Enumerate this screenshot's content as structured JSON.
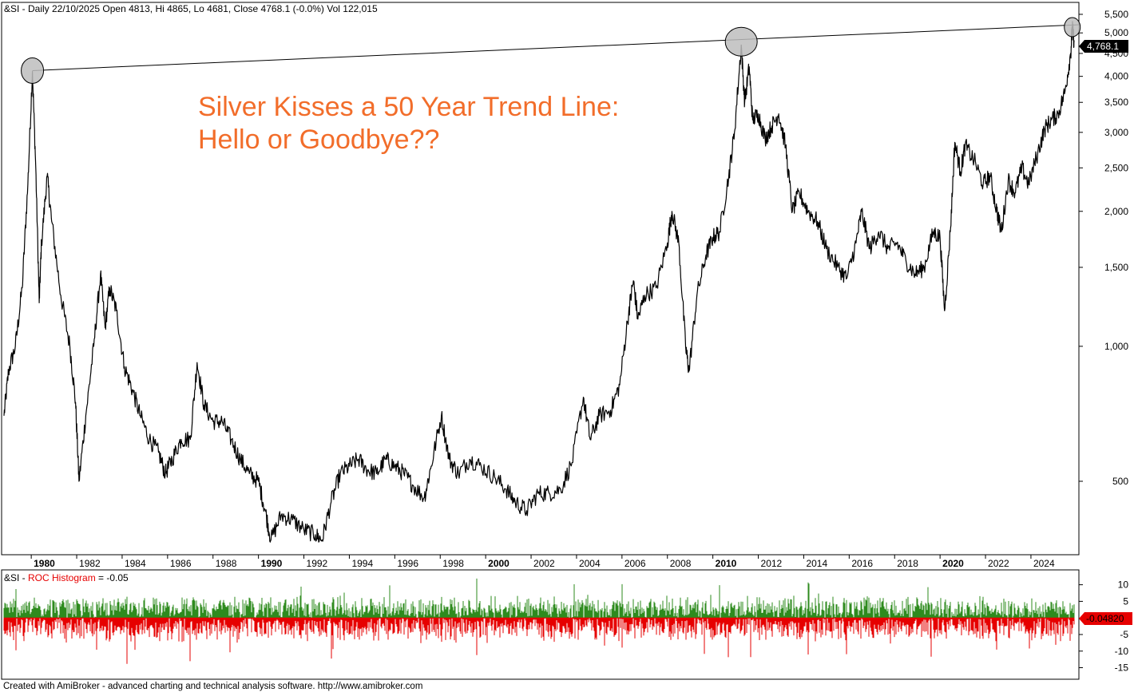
{
  "header": {
    "main": "&SI - Daily 22/10/2025 Open 4813, Hi 4865, Lo 4681, Close 4768.1 (-0.0%) Vol 122,015",
    "roc_prefix": "&SI - ",
    "roc_name": "ROC Histogram",
    "roc_value": " = -0.05"
  },
  "annotation": {
    "line1": "Silver Kisses a 50 Year Trend Line:",
    "line2": "Hello or Goodbye??"
  },
  "price_label": "4,768.1",
  "roc_label": "-0.04820",
  "footer": "Created with AmiBroker - advanced charting and technical analysis software. http://www.amibroker.com",
  "colors": {
    "price_line": "#000000",
    "annotation": "#f26d2a",
    "roc_positive": "#2e8b1e",
    "roc_negative": "#e60000",
    "circle_fill": "#bdbdbd"
  },
  "chart_data": [
    {
      "type": "line",
      "title": "&SI - Daily",
      "scale": "log",
      "ylim": [
        350,
        5800
      ],
      "yticks": [
        500,
        1000,
        1500,
        2000,
        2500,
        3000,
        3500,
        4000,
        4500,
        5000,
        5500
      ],
      "ytick_labels": [
        "500",
        "1,000",
        "1,500",
        "2,000",
        "2,500",
        "3,000",
        "3,500",
        "4,000",
        "4,500",
        "5,000",
        "5,500"
      ],
      "xticks": [
        {
          "label": "1980",
          "year": 1980,
          "bold": true
        },
        {
          "label": "1982",
          "year": 1982,
          "bold": false
        },
        {
          "label": "1984",
          "year": 1984,
          "bold": false
        },
        {
          "label": "1986",
          "year": 1986,
          "bold": false
        },
        {
          "label": "1988",
          "year": 1988,
          "bold": false
        },
        {
          "label": "1990",
          "year": 1990,
          "bold": true
        },
        {
          "label": "1992",
          "year": 1992,
          "bold": false
        },
        {
          "label": "1994",
          "year": 1994,
          "bold": false
        },
        {
          "label": "1996",
          "year": 1996,
          "bold": false
        },
        {
          "label": "1998",
          "year": 1998,
          "bold": false
        },
        {
          "label": "2000",
          "year": 2000,
          "bold": true
        },
        {
          "label": "2002",
          "year": 2002,
          "bold": false
        },
        {
          "label": "2004",
          "year": 2004,
          "bold": false
        },
        {
          "label": "2006",
          "year": 2006,
          "bold": false
        },
        {
          "label": "2008",
          "year": 2008,
          "bold": false
        },
        {
          "label": "2010",
          "year": 2010,
          "bold": true
        },
        {
          "label": "2012",
          "year": 2012,
          "bold": false
        },
        {
          "label": "2014",
          "year": 2014,
          "bold": false
        },
        {
          "label": "2016",
          "year": 2016,
          "bold": false
        },
        {
          "label": "2018",
          "year": 2018,
          "bold": false
        },
        {
          "label": "2020",
          "year": 2020,
          "bold": true
        },
        {
          "label": "2022",
          "year": 2022,
          "bold": false
        },
        {
          "label": "2024",
          "year": 2024,
          "bold": false
        }
      ],
      "xlim": [
        1978.8,
        2025.9
      ],
      "series": [
        {
          "points": [
            [
              1978.8,
              700
            ],
            [
              1979.0,
              880
            ],
            [
              1979.3,
              1000
            ],
            [
              1979.6,
              1350
            ],
            [
              1979.85,
              2300
            ],
            [
              1980.05,
              4100
            ],
            [
              1980.2,
              2500
            ],
            [
              1980.35,
              1250
            ],
            [
              1980.45,
              1700
            ],
            [
              1980.7,
              2400
            ],
            [
              1980.9,
              1900
            ],
            [
              1981.3,
              1300
            ],
            [
              1981.7,
              1000
            ],
            [
              1981.95,
              750
            ],
            [
              1982.1,
              500
            ],
            [
              1982.4,
              700
            ],
            [
              1982.75,
              1000
            ],
            [
              1983.05,
              1450
            ],
            [
              1983.25,
              1100
            ],
            [
              1983.45,
              1350
            ],
            [
              1983.75,
              1200
            ],
            [
              1984.1,
              900
            ],
            [
              1984.45,
              800
            ],
            [
              1984.8,
              700
            ],
            [
              1985.2,
              620
            ],
            [
              1985.6,
              580
            ],
            [
              1985.9,
              520
            ],
            [
              1986.2,
              560
            ],
            [
              1986.6,
              620
            ],
            [
              1987.0,
              620
            ],
            [
              1987.3,
              920
            ],
            [
              1987.6,
              740
            ],
            [
              1988.0,
              680
            ],
            [
              1988.4,
              680
            ],
            [
              1988.8,
              620
            ],
            [
              1989.2,
              560
            ],
            [
              1989.6,
              520
            ],
            [
              1990.0,
              500
            ],
            [
              1990.3,
              430
            ],
            [
              1990.55,
              370
            ],
            [
              1991.0,
              420
            ],
            [
              1991.5,
              410
            ],
            [
              1992.0,
              390
            ],
            [
              1992.5,
              380
            ],
            [
              1992.8,
              370
            ],
            [
              1993.2,
              450
            ],
            [
              1993.6,
              520
            ],
            [
              1994.0,
              540
            ],
            [
              1994.4,
              560
            ],
            [
              1994.8,
              530
            ],
            [
              1995.2,
              520
            ],
            [
              1995.6,
              560
            ],
            [
              1996.0,
              540
            ],
            [
              1996.4,
              520
            ],
            [
              1996.8,
              490
            ],
            [
              1997.3,
              460
            ],
            [
              1997.6,
              540
            ],
            [
              1998.05,
              700
            ],
            [
              1998.4,
              560
            ],
            [
              1998.8,
              520
            ],
            [
              1999.3,
              560
            ],
            [
              1999.8,
              540
            ],
            [
              2000.4,
              510
            ],
            [
              2000.9,
              480
            ],
            [
              2001.3,
              450
            ],
            [
              2001.8,
              430
            ],
            [
              2002.3,
              470
            ],
            [
              2002.8,
              470
            ],
            [
              2003.3,
              480
            ],
            [
              2003.8,
              550
            ],
            [
              2004.3,
              770
            ],
            [
              2004.6,
              620
            ],
            [
              2005.0,
              700
            ],
            [
              2005.5,
              720
            ],
            [
              2005.9,
              820
            ],
            [
              2006.3,
              1200
            ],
            [
              2006.5,
              1400
            ],
            [
              2006.7,
              1150
            ],
            [
              2007.0,
              1300
            ],
            [
              2007.5,
              1350
            ],
            [
              2008.0,
              1700
            ],
            [
              2008.2,
              2000
            ],
            [
              2008.5,
              1700
            ],
            [
              2008.8,
              1000
            ],
            [
              2008.95,
              880
            ],
            [
              2009.3,
              1300
            ],
            [
              2009.7,
              1600
            ],
            [
              2010.0,
              1750
            ],
            [
              2010.3,
              1800
            ],
            [
              2010.7,
              2400
            ],
            [
              2010.95,
              3000
            ],
            [
              2011.25,
              4700
            ],
            [
              2011.4,
              3500
            ],
            [
              2011.6,
              4200
            ],
            [
              2011.75,
              3200
            ],
            [
              2012.0,
              3300
            ],
            [
              2012.3,
              2900
            ],
            [
              2012.6,
              3100
            ],
            [
              2012.9,
              3300
            ],
            [
              2013.2,
              2800
            ],
            [
              2013.5,
              2000
            ],
            [
              2013.8,
              2200
            ],
            [
              2014.2,
              2000
            ],
            [
              2014.6,
              1900
            ],
            [
              2015.0,
              1650
            ],
            [
              2015.5,
              1500
            ],
            [
              2015.9,
              1420
            ],
            [
              2016.3,
              1700
            ],
            [
              2016.55,
              2000
            ],
            [
              2016.9,
              1650
            ],
            [
              2017.3,
              1800
            ],
            [
              2017.7,
              1650
            ],
            [
              2018.1,
              1700
            ],
            [
              2018.5,
              1550
            ],
            [
              2018.9,
              1450
            ],
            [
              2019.3,
              1500
            ],
            [
              2019.7,
              1800
            ],
            [
              2020.0,
              1750
            ],
            [
              2020.2,
              1200
            ],
            [
              2020.45,
              1800
            ],
            [
              2020.65,
              2850
            ],
            [
              2020.9,
              2450
            ],
            [
              2021.1,
              2800
            ],
            [
              2021.5,
              2600
            ],
            [
              2021.9,
              2300
            ],
            [
              2022.2,
              2400
            ],
            [
              2022.5,
              2000
            ],
            [
              2022.7,
              1800
            ],
            [
              2023.0,
              2350
            ],
            [
              2023.3,
              2200
            ],
            [
              2023.6,
              2500
            ],
            [
              2023.9,
              2300
            ],
            [
              2024.3,
              2700
            ],
            [
              2024.6,
              3050
            ],
            [
              2024.9,
              3200
            ],
            [
              2025.2,
              3300
            ],
            [
              2025.5,
              3700
            ],
            [
              2025.75,
              4500
            ],
            [
              2025.82,
              5150
            ],
            [
              2025.9,
              4768.1
            ]
          ]
        }
      ],
      "trend_line": [
        [
          1980.05,
          4120
        ],
        [
          2025.82,
          5150
        ]
      ],
      "highlight_points": [
        [
          1980.05,
          4120
        ],
        [
          2011.25,
          4780
        ],
        [
          2025.82,
          5150
        ]
      ]
    },
    {
      "type": "bar",
      "title": "ROC Histogram",
      "ylim": [
        -18,
        14
      ],
      "yticks": [
        10,
        5,
        -5,
        -10,
        -15
      ],
      "ytick_labels": [
        "10",
        "5",
        "-5",
        "-10",
        "-15"
      ],
      "xlim": [
        1978.8,
        2025.9
      ],
      "last_value": -0.0482
    }
  ]
}
